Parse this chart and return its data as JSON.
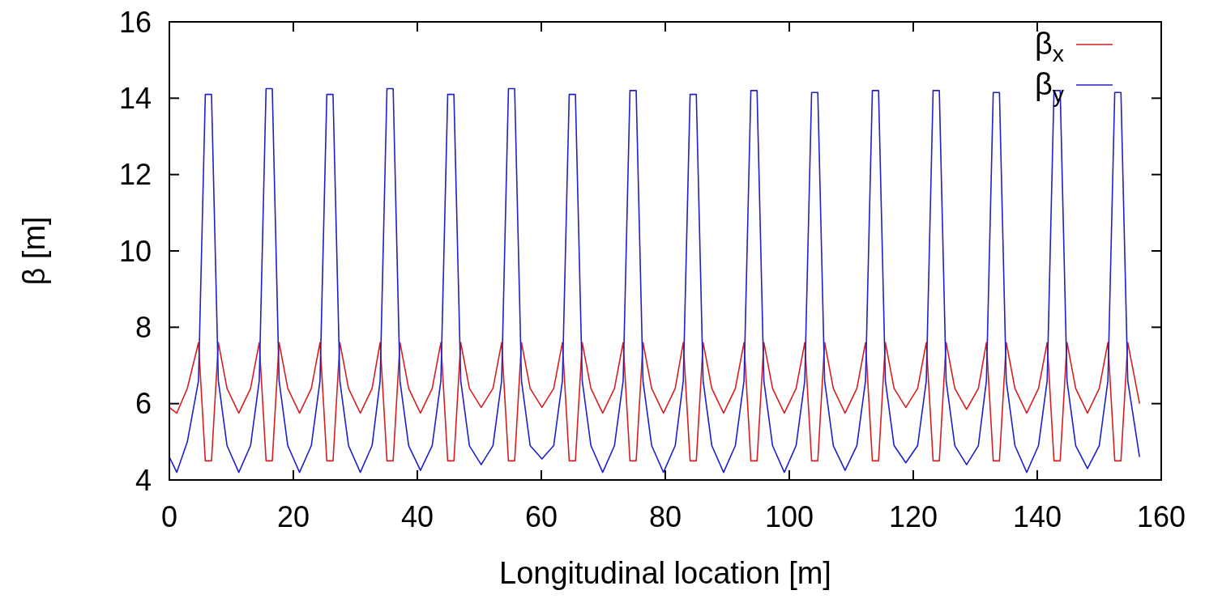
{
  "chart_data": {
    "type": "line",
    "xlabel": "Longitudinal location [m]",
    "ylabel": "β [m]",
    "xlim": [
      0,
      160
    ],
    "ylim": [
      4,
      16
    ],
    "xticks": [
      0,
      20,
      40,
      60,
      80,
      100,
      120,
      140,
      160
    ],
    "yticks": [
      4,
      6,
      8,
      10,
      12,
      14,
      16
    ],
    "grid": false,
    "legend": "top right",
    "line_style": "solid",
    "marker": "none",
    "x": [
      0,
      1.2,
      2.9,
      4.7,
      5.8,
      6.8,
      7.9,
      9.3,
      11.2,
      13.1,
      14.5,
      15.6,
      16.6,
      17.7,
      19.1,
      21.0,
      22.9,
      24.3,
      25.4,
      26.4,
      27.5,
      28.9,
      30.8,
      32.7,
      34.0,
      35.1,
      36.1,
      37.2,
      38.6,
      40.5,
      42.4,
      43.8,
      44.9,
      45.9,
      47.0,
      48.4,
      50.3,
      52.2,
      53.6,
      54.7,
      55.7,
      56.8,
      58.2,
      60.1,
      62.0,
      63.4,
      64.5,
      65.5,
      66.6,
      68.0,
      69.9,
      71.8,
      73.2,
      74.3,
      75.3,
      76.4,
      77.8,
      79.7,
      81.6,
      82.9,
      84.0,
      85.0,
      86.1,
      87.5,
      89.4,
      91.3,
      92.7,
      93.8,
      94.8,
      95.9,
      97.3,
      99.2,
      101.1,
      102.5,
      103.6,
      104.6,
      105.7,
      107.1,
      109.0,
      110.9,
      112.3,
      113.4,
      114.4,
      115.5,
      116.9,
      118.8,
      120.7,
      122.1,
      123.2,
      124.2,
      125.3,
      126.7,
      128.6,
      130.5,
      131.8,
      132.9,
      133.9,
      135.0,
      136.4,
      138.3,
      140.2,
      141.6,
      142.7,
      143.7,
      144.8,
      146.2,
      148.1,
      150.0,
      151.4,
      152.5,
      153.5,
      154.6,
      156.5
    ],
    "series": [
      {
        "name": "β$_{x}$",
        "color": "#d42020",
        "values": [
          5.9,
          5.75,
          6.4,
          7.6,
          4.5,
          4.5,
          7.6,
          6.4,
          5.75,
          6.4,
          7.6,
          4.5,
          4.5,
          7.6,
          6.4,
          5.75,
          6.4,
          7.6,
          4.5,
          4.5,
          7.6,
          6.4,
          5.75,
          6.4,
          7.6,
          4.5,
          4.5,
          7.6,
          6.4,
          5.75,
          6.4,
          7.6,
          4.5,
          4.5,
          7.6,
          6.4,
          5.9,
          6.4,
          7.6,
          4.5,
          4.5,
          7.6,
          6.4,
          5.9,
          6.4,
          7.6,
          4.5,
          4.5,
          7.6,
          6.4,
          5.75,
          6.4,
          7.6,
          4.5,
          4.5,
          7.6,
          6.4,
          5.75,
          6.4,
          7.6,
          4.5,
          4.5,
          7.6,
          6.4,
          5.75,
          6.4,
          7.6,
          4.5,
          4.5,
          7.6,
          6.4,
          5.75,
          6.4,
          7.6,
          4.5,
          4.5,
          7.6,
          6.4,
          5.75,
          6.4,
          7.6,
          4.5,
          4.5,
          7.6,
          6.4,
          5.9,
          6.4,
          7.6,
          4.5,
          4.5,
          7.6,
          6.4,
          5.85,
          6.4,
          7.6,
          4.5,
          4.5,
          7.6,
          6.4,
          5.75,
          6.4,
          7.6,
          4.5,
          4.5,
          7.6,
          6.4,
          5.75,
          6.4,
          7.6,
          4.5,
          4.5,
          7.6,
          6.0
        ]
      },
      {
        "name": "β$_{y}$",
        "color": "#2020c8",
        "values": [
          4.6,
          4.2,
          5.0,
          6.6,
          14.1,
          14.1,
          6.6,
          4.9,
          4.2,
          4.9,
          6.6,
          14.25,
          14.25,
          6.6,
          4.9,
          4.2,
          4.9,
          6.6,
          14.1,
          14.1,
          6.6,
          4.9,
          4.2,
          4.9,
          6.6,
          14.25,
          14.25,
          6.6,
          4.9,
          4.25,
          4.9,
          6.6,
          14.1,
          14.1,
          6.6,
          4.9,
          4.4,
          4.9,
          6.6,
          14.25,
          14.25,
          6.6,
          4.9,
          4.55,
          4.9,
          6.6,
          14.1,
          14.1,
          6.6,
          4.9,
          4.2,
          4.9,
          6.6,
          14.2,
          14.2,
          6.6,
          4.9,
          4.2,
          4.9,
          6.6,
          14.1,
          14.1,
          6.6,
          4.9,
          4.2,
          4.9,
          6.6,
          14.2,
          14.2,
          6.6,
          4.9,
          4.2,
          4.9,
          6.6,
          14.15,
          14.15,
          6.6,
          4.9,
          4.25,
          4.9,
          6.6,
          14.2,
          14.2,
          6.6,
          4.9,
          4.45,
          4.9,
          6.6,
          14.2,
          14.2,
          6.6,
          4.9,
          4.4,
          4.9,
          6.6,
          14.15,
          14.15,
          6.6,
          4.9,
          4.2,
          4.9,
          6.6,
          14.2,
          14.2,
          6.6,
          4.9,
          4.3,
          4.9,
          6.6,
          14.15,
          14.15,
          6.6,
          4.6
        ]
      }
    ]
  }
}
